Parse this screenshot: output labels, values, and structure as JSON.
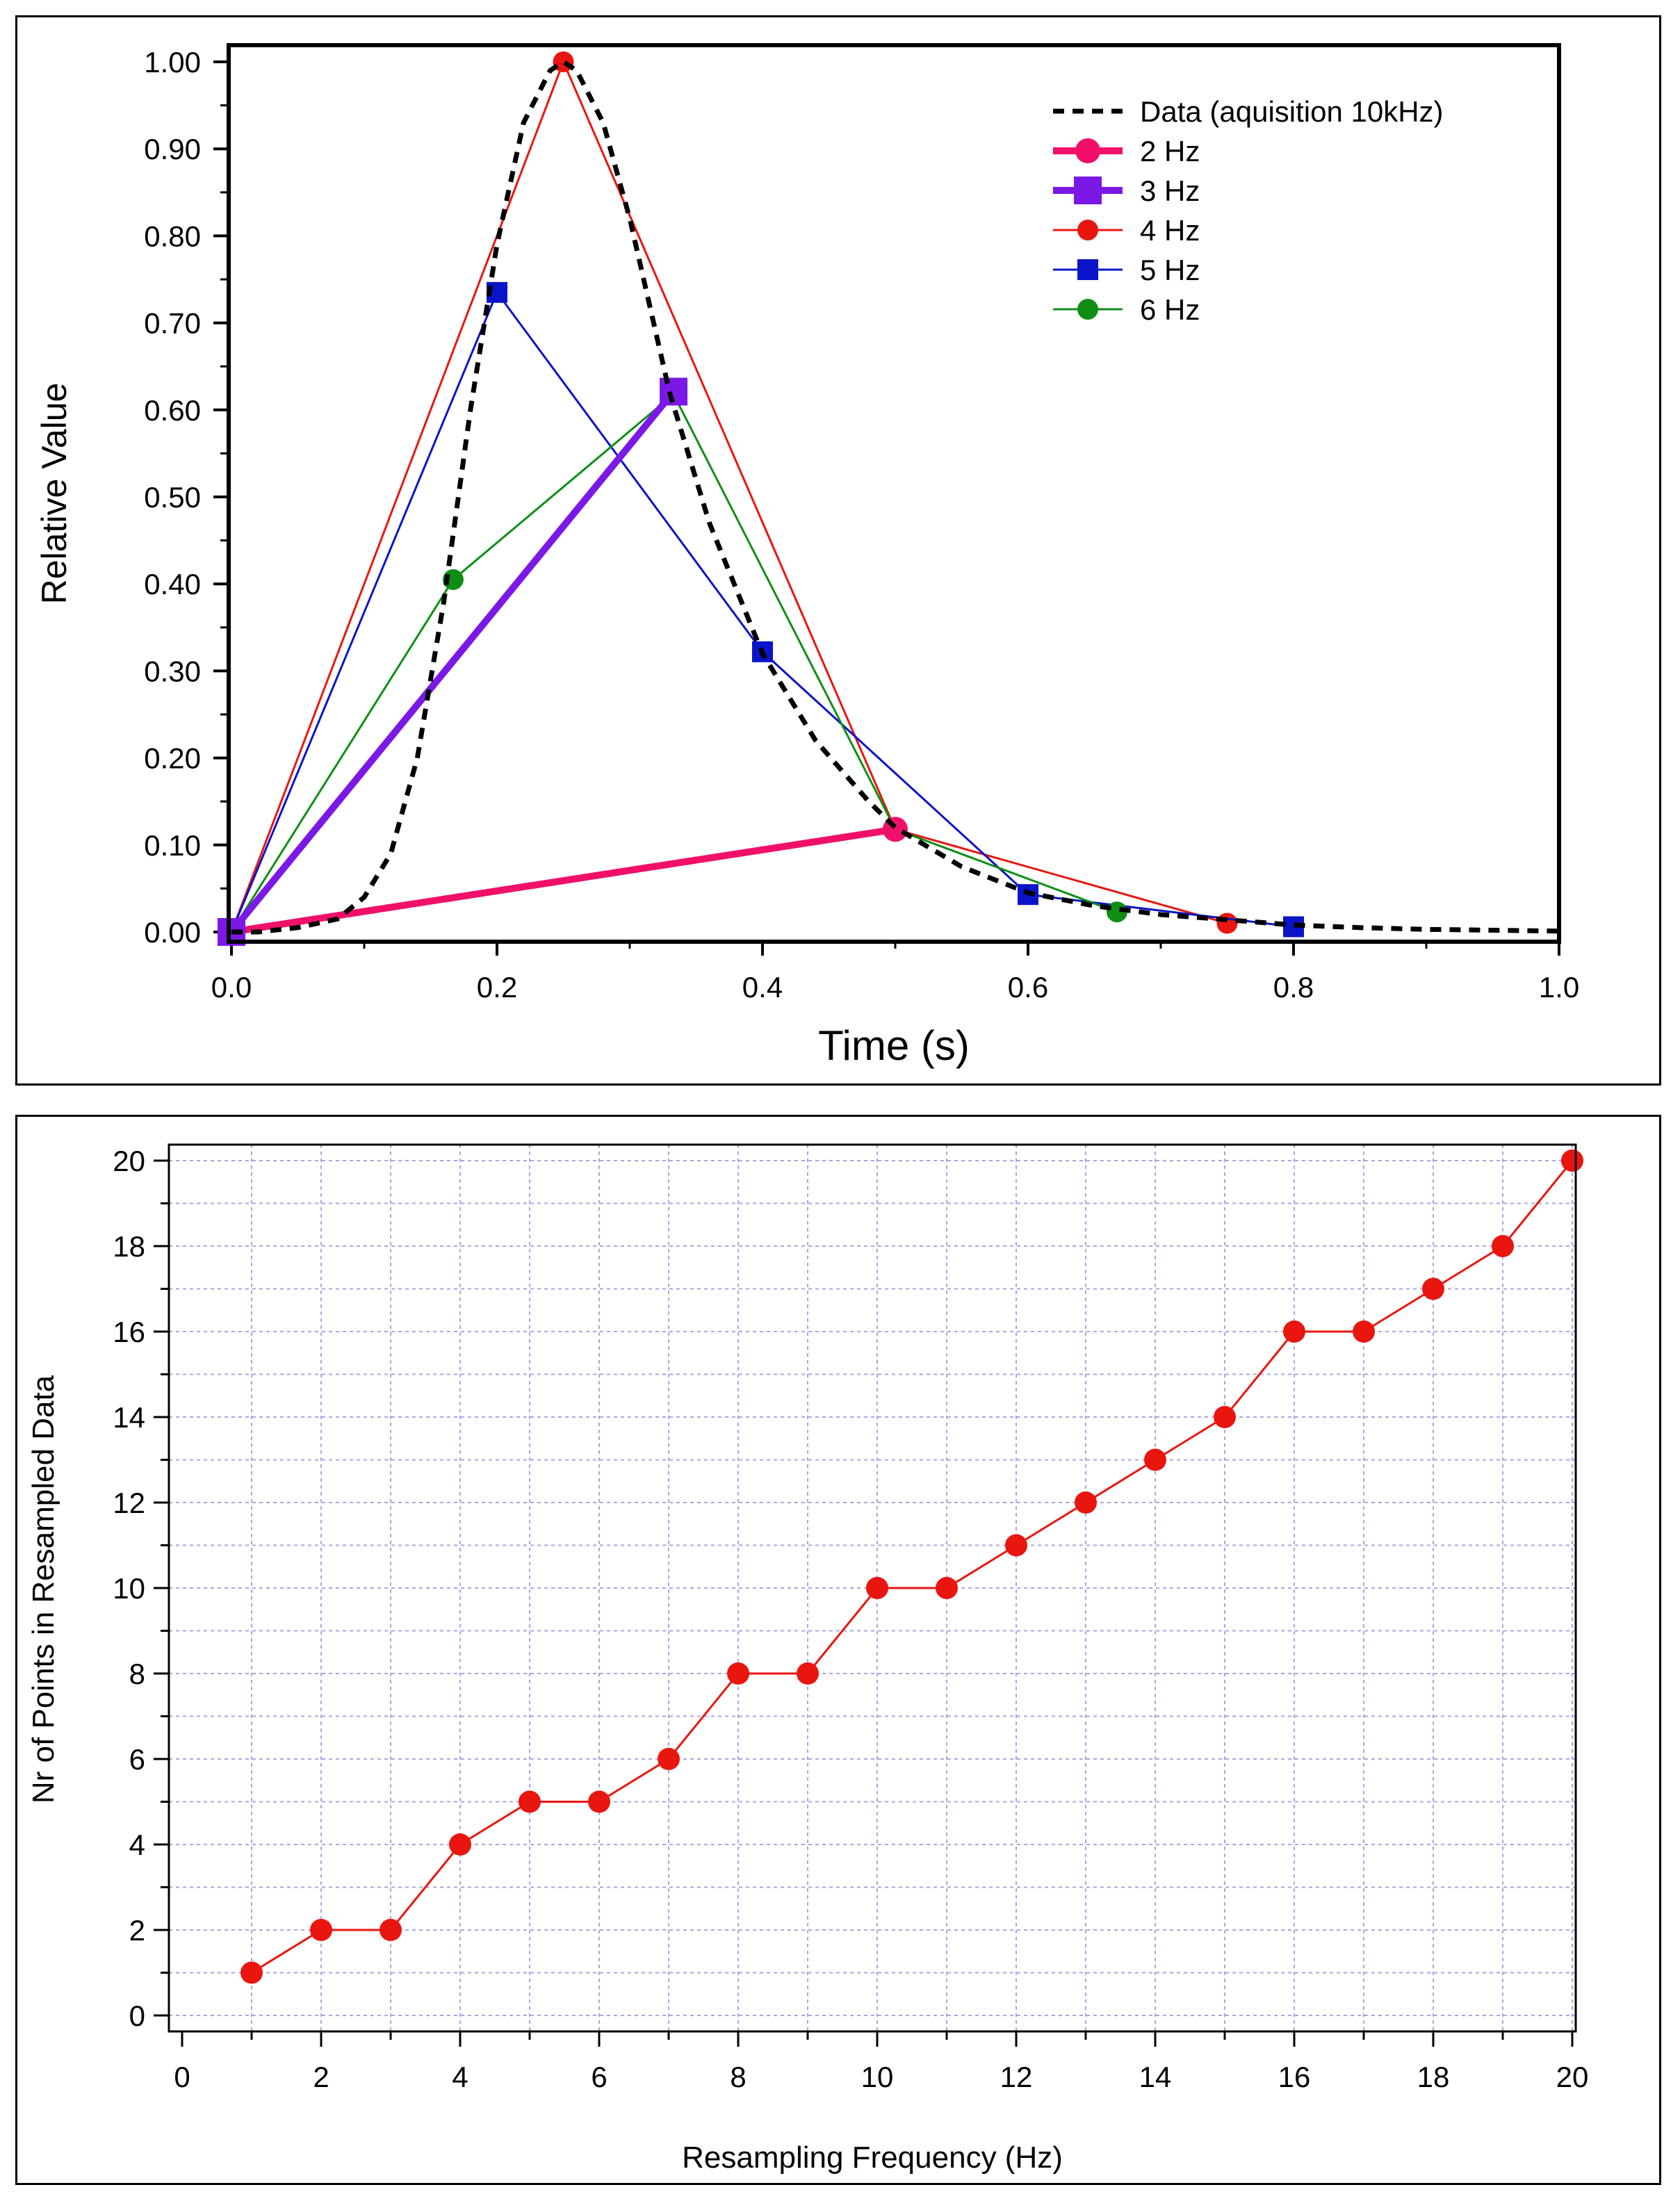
{
  "chart_data": [
    {
      "type": "line",
      "title": "",
      "xlabel": "Time (s)",
      "ylabel": "Relative Value",
      "xlim": [
        0,
        1.0
      ],
      "ylim": [
        0,
        1.0
      ],
      "xticks": [
        "0.0",
        "0.2",
        "0.4",
        "0.6",
        "0.8",
        "1.0"
      ],
      "yticks": [
        "0.00",
        "0.10",
        "0.20",
        "0.30",
        "0.40",
        "0.50",
        "0.60",
        "0.70",
        "0.80",
        "0.90",
        "1.00"
      ],
      "grid": false,
      "legend_position": "top-right",
      "series": [
        {
          "name": "Data (aquisition 10kHz)",
          "style": "dashed",
          "color": "#000000",
          "x": [
            0,
            0.02,
            0.05,
            0.08,
            0.1,
            0.12,
            0.14,
            0.16,
            0.18,
            0.2,
            0.22,
            0.24,
            0.25,
            0.26,
            0.28,
            0.3,
            0.33,
            0.36,
            0.4,
            0.44,
            0.48,
            0.5,
            0.55,
            0.6,
            0.65,
            0.7,
            0.75,
            0.8,
            0.85,
            0.9,
            0.95,
            1.0
          ],
          "y": [
            0,
            0.0,
            0.005,
            0.015,
            0.04,
            0.09,
            0.2,
            0.38,
            0.6,
            0.79,
            0.93,
            0.99,
            1.0,
            0.99,
            0.93,
            0.82,
            0.62,
            0.47,
            0.32,
            0.22,
            0.15,
            0.12,
            0.075,
            0.045,
            0.03,
            0.02,
            0.014,
            0.008,
            0.005,
            0.003,
            0.002,
            0.001
          ]
        },
        {
          "name": "2 Hz",
          "color": "#F0106A",
          "marker": "circle",
          "x": [
            0,
            0.5
          ],
          "y": [
            0,
            0.118
          ]
        },
        {
          "name": "3 Hz",
          "color": "#7B18E6",
          "marker": "square",
          "x": [
            0,
            0.333
          ],
          "y": [
            0,
            0.621
          ]
        },
        {
          "name": "4 Hz",
          "color": "#E8160F",
          "marker": "circle",
          "x": [
            0,
            0.25,
            0.5,
            0.75
          ],
          "y": [
            0,
            1.0,
            0.118,
            0.01
          ]
        },
        {
          "name": "5 Hz",
          "color": "#0A14C8",
          "marker": "square",
          "x": [
            0,
            0.2,
            0.4,
            0.6,
            0.8
          ],
          "y": [
            0,
            0.735,
            0.322,
            0.043,
            0.006
          ]
        },
        {
          "name": "6 Hz",
          "color": "#0E8F14",
          "marker": "circle",
          "x": [
            0,
            0.167,
            0.333,
            0.5,
            0.667
          ],
          "y": [
            0,
            0.405,
            0.618,
            0.118,
            0.023
          ]
        }
      ]
    },
    {
      "type": "line",
      "title": "",
      "xlabel": "Resampling Frequency (Hz)",
      "ylabel": "Nr of Points in Resampled Data",
      "xlim": [
        0,
        20
      ],
      "ylim": [
        0,
        20
      ],
      "xticks": [
        "0",
        "2",
        "4",
        "6",
        "8",
        "10",
        "12",
        "14",
        "16",
        "18",
        "20"
      ],
      "yticks": [
        "0",
        "2",
        "4",
        "6",
        "8",
        "10",
        "12",
        "14",
        "16",
        "18",
        "20"
      ],
      "grid": true,
      "series": [
        {
          "color": "#E8160F",
          "marker": "circle",
          "x": [
            1,
            2,
            3,
            4,
            5,
            6,
            7,
            8,
            9,
            10,
            11,
            12,
            13,
            14,
            15,
            16,
            17,
            18,
            19,
            20
          ],
          "y": [
            1,
            2,
            2,
            4,
            5,
            5,
            6,
            8,
            8,
            10,
            10,
            11,
            12,
            13,
            14,
            16,
            16,
            17,
            18,
            20
          ]
        }
      ]
    }
  ]
}
